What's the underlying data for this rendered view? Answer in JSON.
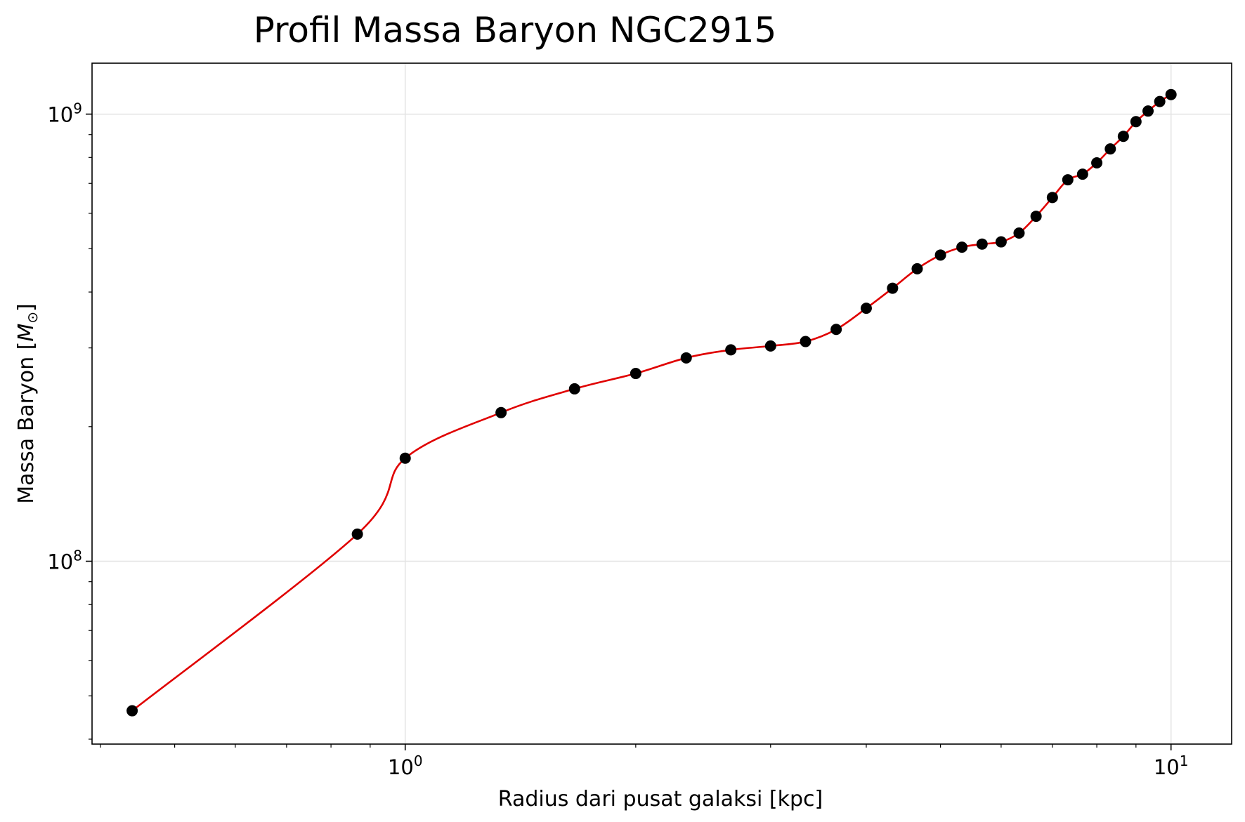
{
  "chart_data": {
    "type": "scatter",
    "title": "Profil Massa Baryon NGC2915",
    "xlabel": "Radius dari pusat galaksi [kpc]",
    "ylabel": "Massa Baryon [",
    "ylabel_symbol": "M",
    "ylabel_sub": "⊙",
    "ylabel_close": "]",
    "xscale": "log",
    "yscale": "log",
    "xlim": [
      0.39,
      12.0
    ],
    "ylim": [
      39000000,
      1300000000
    ],
    "grid": true,
    "x_ticks": [
      {
        "value": 1,
        "base": "10",
        "exp": "0"
      },
      {
        "value": 10,
        "base": "10",
        "exp": "1"
      }
    ],
    "y_ticks": [
      {
        "value": 100000000,
        "base": "10",
        "exp": "8"
      },
      {
        "value": 1000000000,
        "base": "10",
        "exp": "9"
      }
    ],
    "series": [
      {
        "marker_color": "#000000",
        "line_color": "#e00000",
        "x": [
          0.44,
          0.866,
          1.0,
          1.334,
          1.664,
          2.0,
          2.328,
          2.662,
          3.0,
          3.332,
          3.654,
          4.0,
          4.329,
          4.662,
          5.0,
          5.333,
          5.666,
          6.0,
          6.333,
          6.665,
          7.0,
          7.332,
          7.665,
          8.0,
          8.332,
          8.665,
          9.0,
          9.333,
          9.667,
          10.0
        ],
        "y": [
          46300000,
          115000000,
          170000000,
          215000000,
          243000000,
          263000000,
          285000000,
          297000000,
          303000000,
          310000000,
          330000000,
          368000000,
          408000000,
          451000000,
          484000000,
          504000000,
          512000000,
          518000000,
          542000000,
          591000000,
          651000000,
          713000000,
          734000000,
          778000000,
          836000000,
          892000000,
          962000000,
          1016000000,
          1067000000,
          1106000000
        ]
      }
    ]
  }
}
